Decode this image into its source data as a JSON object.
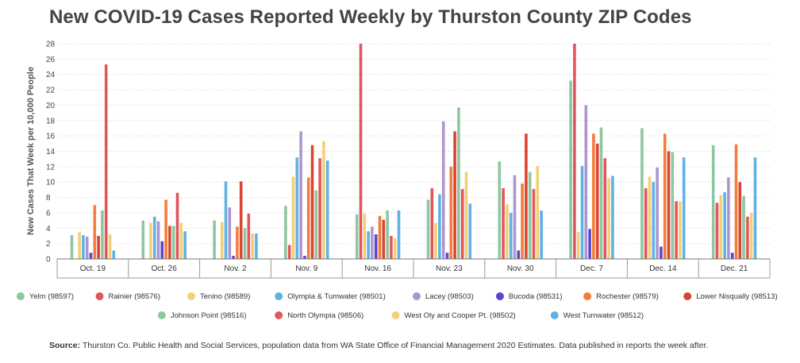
{
  "chart_data": {
    "type": "bar",
    "title": "New COVID-19 Cases Reported Weekly by Thurston County ZIP Codes",
    "ylabel": "New Cases That Week per 10,000 People",
    "xlabel": "",
    "ylim": [
      0,
      28
    ],
    "yticks": [
      0,
      2,
      4,
      6,
      8,
      10,
      12,
      14,
      16,
      18,
      20,
      22,
      24,
      26,
      28
    ],
    "grid": true,
    "legend_position": "bottom",
    "categories": [
      "Oct. 19",
      "Oct. 26",
      "Nov. 2",
      "Nov. 9",
      "Nov. 16",
      "Nov. 23",
      "Nov. 30",
      "Dec. 7",
      "Dec. 14",
      "Dec. 21"
    ],
    "series": [
      {
        "name": "Yelm (98597)",
        "color": "#8cc7a2",
        "values": [
          3.1,
          5.0,
          5.0,
          6.9,
          5.8,
          7.7,
          12.7,
          23.2,
          17.0,
          14.8
        ]
      },
      {
        "name": "Rainier (98576)",
        "color": "#e0565a",
        "values": [
          0,
          0,
          0,
          1.8,
          28.0,
          9.2,
          9.2,
          28.0,
          9.2,
          7.3
        ]
      },
      {
        "name": "Tenino (98589)",
        "color": "#f2cf79",
        "values": [
          3.5,
          4.7,
          4.8,
          10.7,
          5.9,
          4.7,
          7.1,
          3.5,
          10.7,
          8.3
        ]
      },
      {
        "name": "Olympia & Tumwater (98501)",
        "color": "#5eb2e4",
        "values": [
          3.1,
          5.5,
          10.1,
          13.2,
          3.6,
          8.4,
          6.0,
          12.1,
          10.0,
          8.7
        ]
      },
      {
        "name": "Lacey (98503)",
        "color": "#ad96cf",
        "values": [
          2.9,
          4.9,
          6.7,
          16.6,
          4.2,
          17.9,
          10.9,
          20.0,
          11.9,
          10.6
        ]
      },
      {
        "name": "Bucoda (98531)",
        "color": "#5a45d0",
        "values": [
          0.8,
          2.3,
          0.4,
          0.4,
          3.2,
          0.8,
          1.1,
          3.9,
          1.6,
          0.8
        ]
      },
      {
        "name": "Rochester (98579)",
        "color": "#f47c3c",
        "values": [
          7.0,
          7.7,
          4.2,
          10.6,
          5.6,
          12.0,
          9.8,
          16.3,
          16.3,
          14.9
        ]
      },
      {
        "name": "Lower Nisqually (98513)",
        "color": "#d9452f",
        "values": [
          3.0,
          4.3,
          10.1,
          14.8,
          5.1,
          16.6,
          16.3,
          15.0,
          14.0,
          10.0
        ]
      },
      {
        "name": "Johnson Point (98516)",
        "color": "#8cc7a2",
        "values": [
          6.3,
          4.3,
          4.0,
          8.9,
          6.3,
          19.7,
          11.3,
          17.1,
          13.9,
          8.2
        ]
      },
      {
        "name": "North Olympia (98506)",
        "color": "#e0565a",
        "values": [
          25.3,
          8.6,
          5.9,
          13.1,
          3.0,
          9.1,
          9.1,
          13.1,
          7.5,
          5.5
        ]
      },
      {
        "name": "West Oly and Cooper Pt. (98502)",
        "color": "#f2cf79",
        "values": [
          3.2,
          4.7,
          3.3,
          15.3,
          2.7,
          11.3,
          12.1,
          10.5,
          7.5,
          6.0
        ]
      },
      {
        "name": "West Tumwater (98512)",
        "color": "#5eb2e4",
        "values": [
          1.1,
          3.6,
          3.3,
          12.8,
          6.3,
          7.2,
          6.3,
          10.8,
          13.2,
          13.2
        ]
      }
    ]
  },
  "source": {
    "label": "Source:",
    "text": " Thurston Co. Public Health and Social Services, population data from WA State Office of Financial Management 2020 Estimates. Data published in reports the week after."
  }
}
